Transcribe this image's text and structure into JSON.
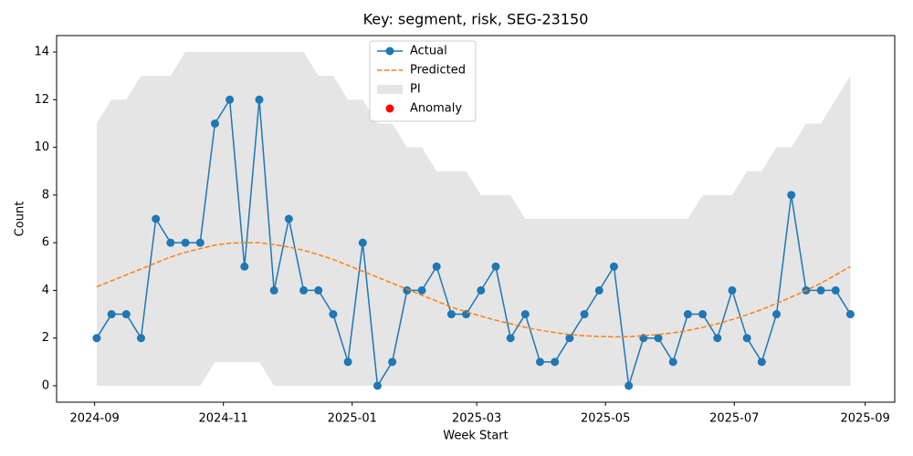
{
  "chart_data": {
    "type": "line",
    "title": "Key: segment, risk, SEG-23150",
    "xlabel": "Week Start",
    "ylabel": "Count",
    "x": [
      "2024-09-02",
      "2024-09-09",
      "2024-09-16",
      "2024-09-23",
      "2024-09-30",
      "2024-10-07",
      "2024-10-14",
      "2024-10-21",
      "2024-10-28",
      "2024-11-04",
      "2024-11-11",
      "2024-11-18",
      "2024-11-25",
      "2024-12-02",
      "2024-12-09",
      "2024-12-16",
      "2024-12-23",
      "2024-12-30",
      "2025-01-06",
      "2025-01-13",
      "2025-01-20",
      "2025-01-27",
      "2025-02-03",
      "2025-02-10",
      "2025-02-17",
      "2025-02-24",
      "2025-03-03",
      "2025-03-10",
      "2025-03-17",
      "2025-03-24",
      "2025-03-31",
      "2025-04-07",
      "2025-04-14",
      "2025-04-21",
      "2025-04-28",
      "2025-05-05",
      "2025-05-12",
      "2025-05-19",
      "2025-05-26",
      "2025-06-02",
      "2025-06-09",
      "2025-06-16",
      "2025-06-23",
      "2025-06-30",
      "2025-07-07",
      "2025-07-14",
      "2025-07-21",
      "2025-07-28",
      "2025-08-04",
      "2025-08-11",
      "2025-08-18",
      "2025-08-25"
    ],
    "series": [
      {
        "name": "Actual",
        "color": "#1f77b4",
        "style": "line-marker",
        "values": [
          2,
          3,
          3,
          2,
          7,
          6,
          6,
          6,
          11,
          12,
          5,
          12,
          4,
          7,
          4,
          4,
          3,
          1,
          6,
          0,
          1,
          4,
          4,
          5,
          3,
          3,
          4,
          5,
          2,
          3,
          1,
          1,
          2,
          3,
          4,
          5,
          0,
          2,
          2,
          1,
          3,
          3,
          2,
          4,
          2,
          1,
          3,
          8,
          4,
          4,
          4,
          3
        ]
      },
      {
        "name": "Predicted",
        "color": "#ff7f0e",
        "style": "dashed",
        "values": [
          4.15,
          4.4,
          4.65,
          4.9,
          5.15,
          5.4,
          5.6,
          5.75,
          5.9,
          5.98,
          6.0,
          6.0,
          5.92,
          5.82,
          5.68,
          5.5,
          5.3,
          5.05,
          4.8,
          4.55,
          4.3,
          4.05,
          3.8,
          3.55,
          3.3,
          3.1,
          2.92,
          2.75,
          2.6,
          2.45,
          2.33,
          2.23,
          2.15,
          2.1,
          2.07,
          2.05,
          2.06,
          2.1,
          2.15,
          2.22,
          2.32,
          2.45,
          2.6,
          2.78,
          2.98,
          3.2,
          3.45,
          3.72,
          4.0,
          4.3,
          4.65,
          5.0
        ]
      },
      {
        "name": "PI",
        "color": "#e5e5e5",
        "style": "band",
        "lower": [
          0,
          0,
          0,
          0,
          0,
          0,
          0,
          0,
          1,
          1,
          1,
          1,
          0,
          0,
          0,
          0,
          0,
          0,
          0,
          0,
          0,
          0,
          0,
          0,
          0,
          0,
          0,
          0,
          0,
          0,
          0,
          0,
          0,
          0,
          0,
          0,
          0,
          0,
          0,
          0,
          0,
          0,
          0,
          0,
          0,
          0,
          0,
          0,
          0,
          0,
          0,
          0
        ],
        "upper": [
          11,
          12,
          12,
          13,
          13,
          13,
          14,
          14,
          14,
          14,
          14,
          14,
          14,
          14,
          14,
          13,
          13,
          12,
          12,
          11,
          11,
          10,
          10,
          9,
          9,
          9,
          8,
          8,
          8,
          7,
          7,
          7,
          7,
          7,
          7,
          7,
          7,
          7,
          7,
          7,
          7,
          8,
          8,
          8,
          9,
          9,
          10,
          10,
          11,
          11,
          12,
          13
        ]
      },
      {
        "name": "Anomaly",
        "color": "#ff0000",
        "style": "points",
        "values": [
          null,
          null,
          null,
          null,
          null,
          null,
          null,
          null,
          null,
          null,
          null,
          null,
          null,
          null,
          null,
          null,
          null,
          null,
          null,
          null,
          null,
          null,
          null,
          null,
          null,
          null,
          null,
          null,
          null,
          null,
          null,
          null,
          null,
          null,
          null,
          null,
          null,
          null,
          null,
          null,
          null,
          null,
          null,
          null,
          null,
          null,
          null,
          null,
          null,
          null,
          null,
          null
        ]
      }
    ],
    "xlim": [
      "2024-08-14",
      "2025-09-15"
    ],
    "xticks": [
      {
        "value": "2024-09-01",
        "label": "2024-09"
      },
      {
        "value": "2024-11-01",
        "label": "2024-11"
      },
      {
        "value": "2025-01-01",
        "label": "2025-01"
      },
      {
        "value": "2025-03-01",
        "label": "2025-03"
      },
      {
        "value": "2025-05-01",
        "label": "2025-05"
      },
      {
        "value": "2025-07-01",
        "label": "2025-07"
      },
      {
        "value": "2025-09-01",
        "label": "2025-09"
      }
    ],
    "ylim": [
      -0.69,
      14.69
    ],
    "yticks": [
      0,
      2,
      4,
      6,
      8,
      10,
      12,
      14
    ],
    "grid": false,
    "legend": "upper center"
  }
}
